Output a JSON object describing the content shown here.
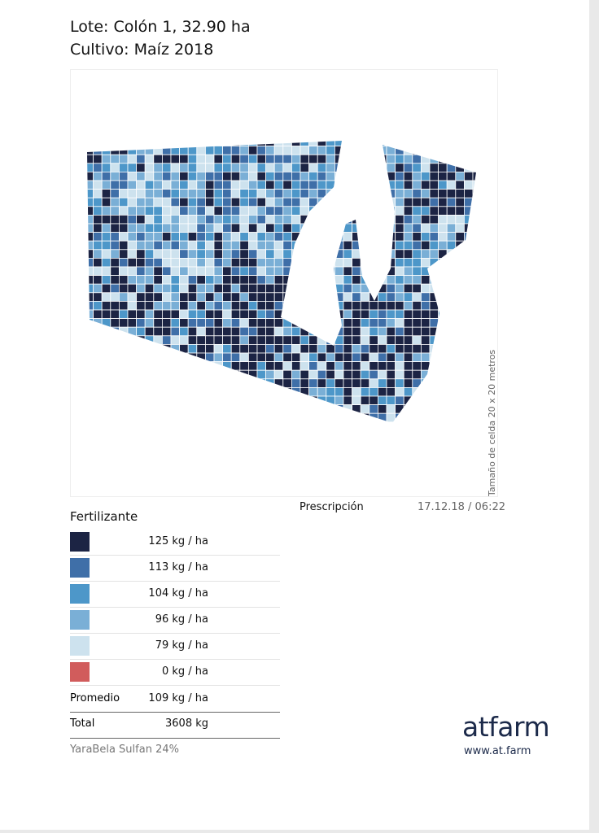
{
  "header": {
    "lote": "Lote: Colón 1, 32.90 ha",
    "cultivo": "Cultivo: Maíz 2018"
  },
  "map": {
    "side_label": "Tamaño de celda 20 x 20 metros",
    "caption": "Prescripción",
    "timestamp": "17.12.18 / 06:22"
  },
  "legend": {
    "title": "Fertilizante",
    "items": [
      {
        "color": "#1c2444",
        "label": "125 kg / ha"
      },
      {
        "color": "#3f6fa8",
        "label": "113 kg / ha"
      },
      {
        "color": "#4d97c9",
        "label": "104 kg / ha"
      },
      {
        "color": "#7aafd6",
        "label": "96 kg / ha"
      },
      {
        "color": "#cde2ee",
        "label": "79 kg / ha"
      },
      {
        "color": "#d15c5c",
        "label": "0 kg / ha"
      }
    ],
    "average": {
      "label": "Promedio",
      "value": "109 kg / ha"
    },
    "total": {
      "label": "Total",
      "value": "3608 kg"
    },
    "product": "YaraBela Sulfan 24%"
  },
  "brand": {
    "name": "atfarm",
    "url": "www.at.farm"
  }
}
